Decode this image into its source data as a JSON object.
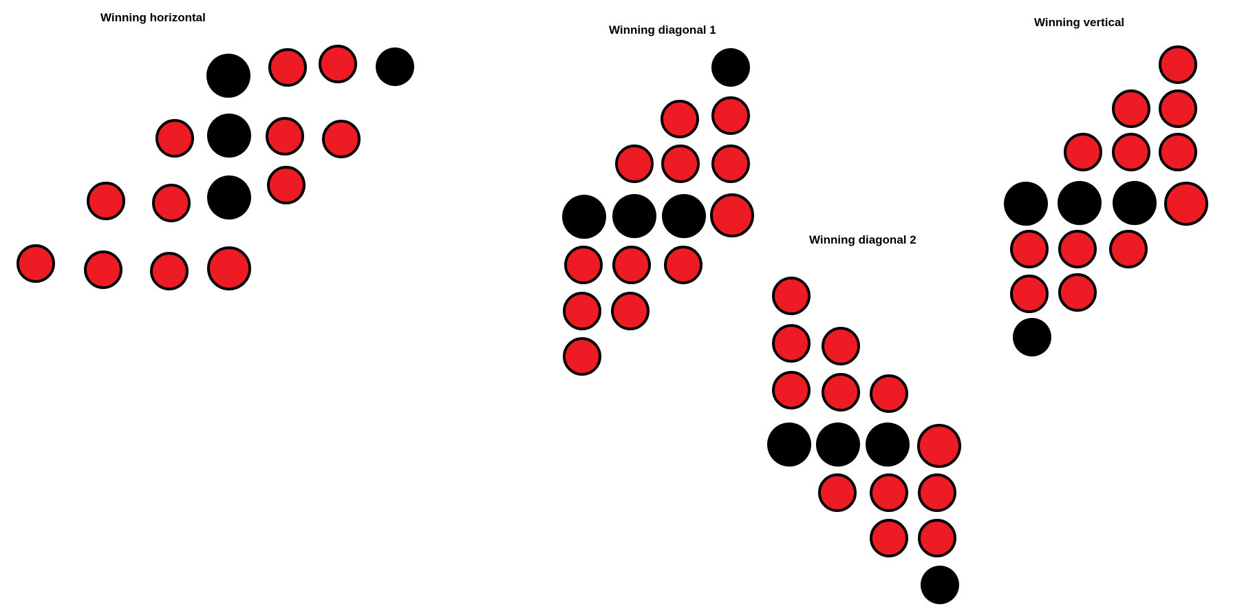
{
  "colors": {
    "red": "#ed1c24",
    "black": "#000000",
    "outline": "#000000",
    "background": "#ffffff"
  },
  "panels": [
    {
      "title": "Winning horizontal",
      "discs": [
        "red",
        "red",
        "red",
        "red",
        "red",
        "red",
        "red",
        "red",
        "red",
        "red",
        "red",
        "black",
        "black",
        "black",
        "black"
      ]
    },
    {
      "title": "Winning diagonal 1",
      "discs": [
        "red",
        "red",
        "red",
        "red",
        "red",
        "red",
        "red",
        "red",
        "red",
        "red",
        "red",
        "black",
        "black",
        "black",
        "black"
      ]
    },
    {
      "title": "Winning diagonal 2",
      "discs": [
        "red",
        "red",
        "red",
        "red",
        "red",
        "red",
        "red",
        "red",
        "red",
        "red",
        "red",
        "black",
        "black",
        "black",
        "black"
      ]
    },
    {
      "title": "Winning vertical",
      "discs": [
        "red",
        "red",
        "red",
        "red",
        "red",
        "red",
        "red",
        "red",
        "red",
        "red",
        "red",
        "black",
        "black",
        "black",
        "black"
      ]
    }
  ]
}
